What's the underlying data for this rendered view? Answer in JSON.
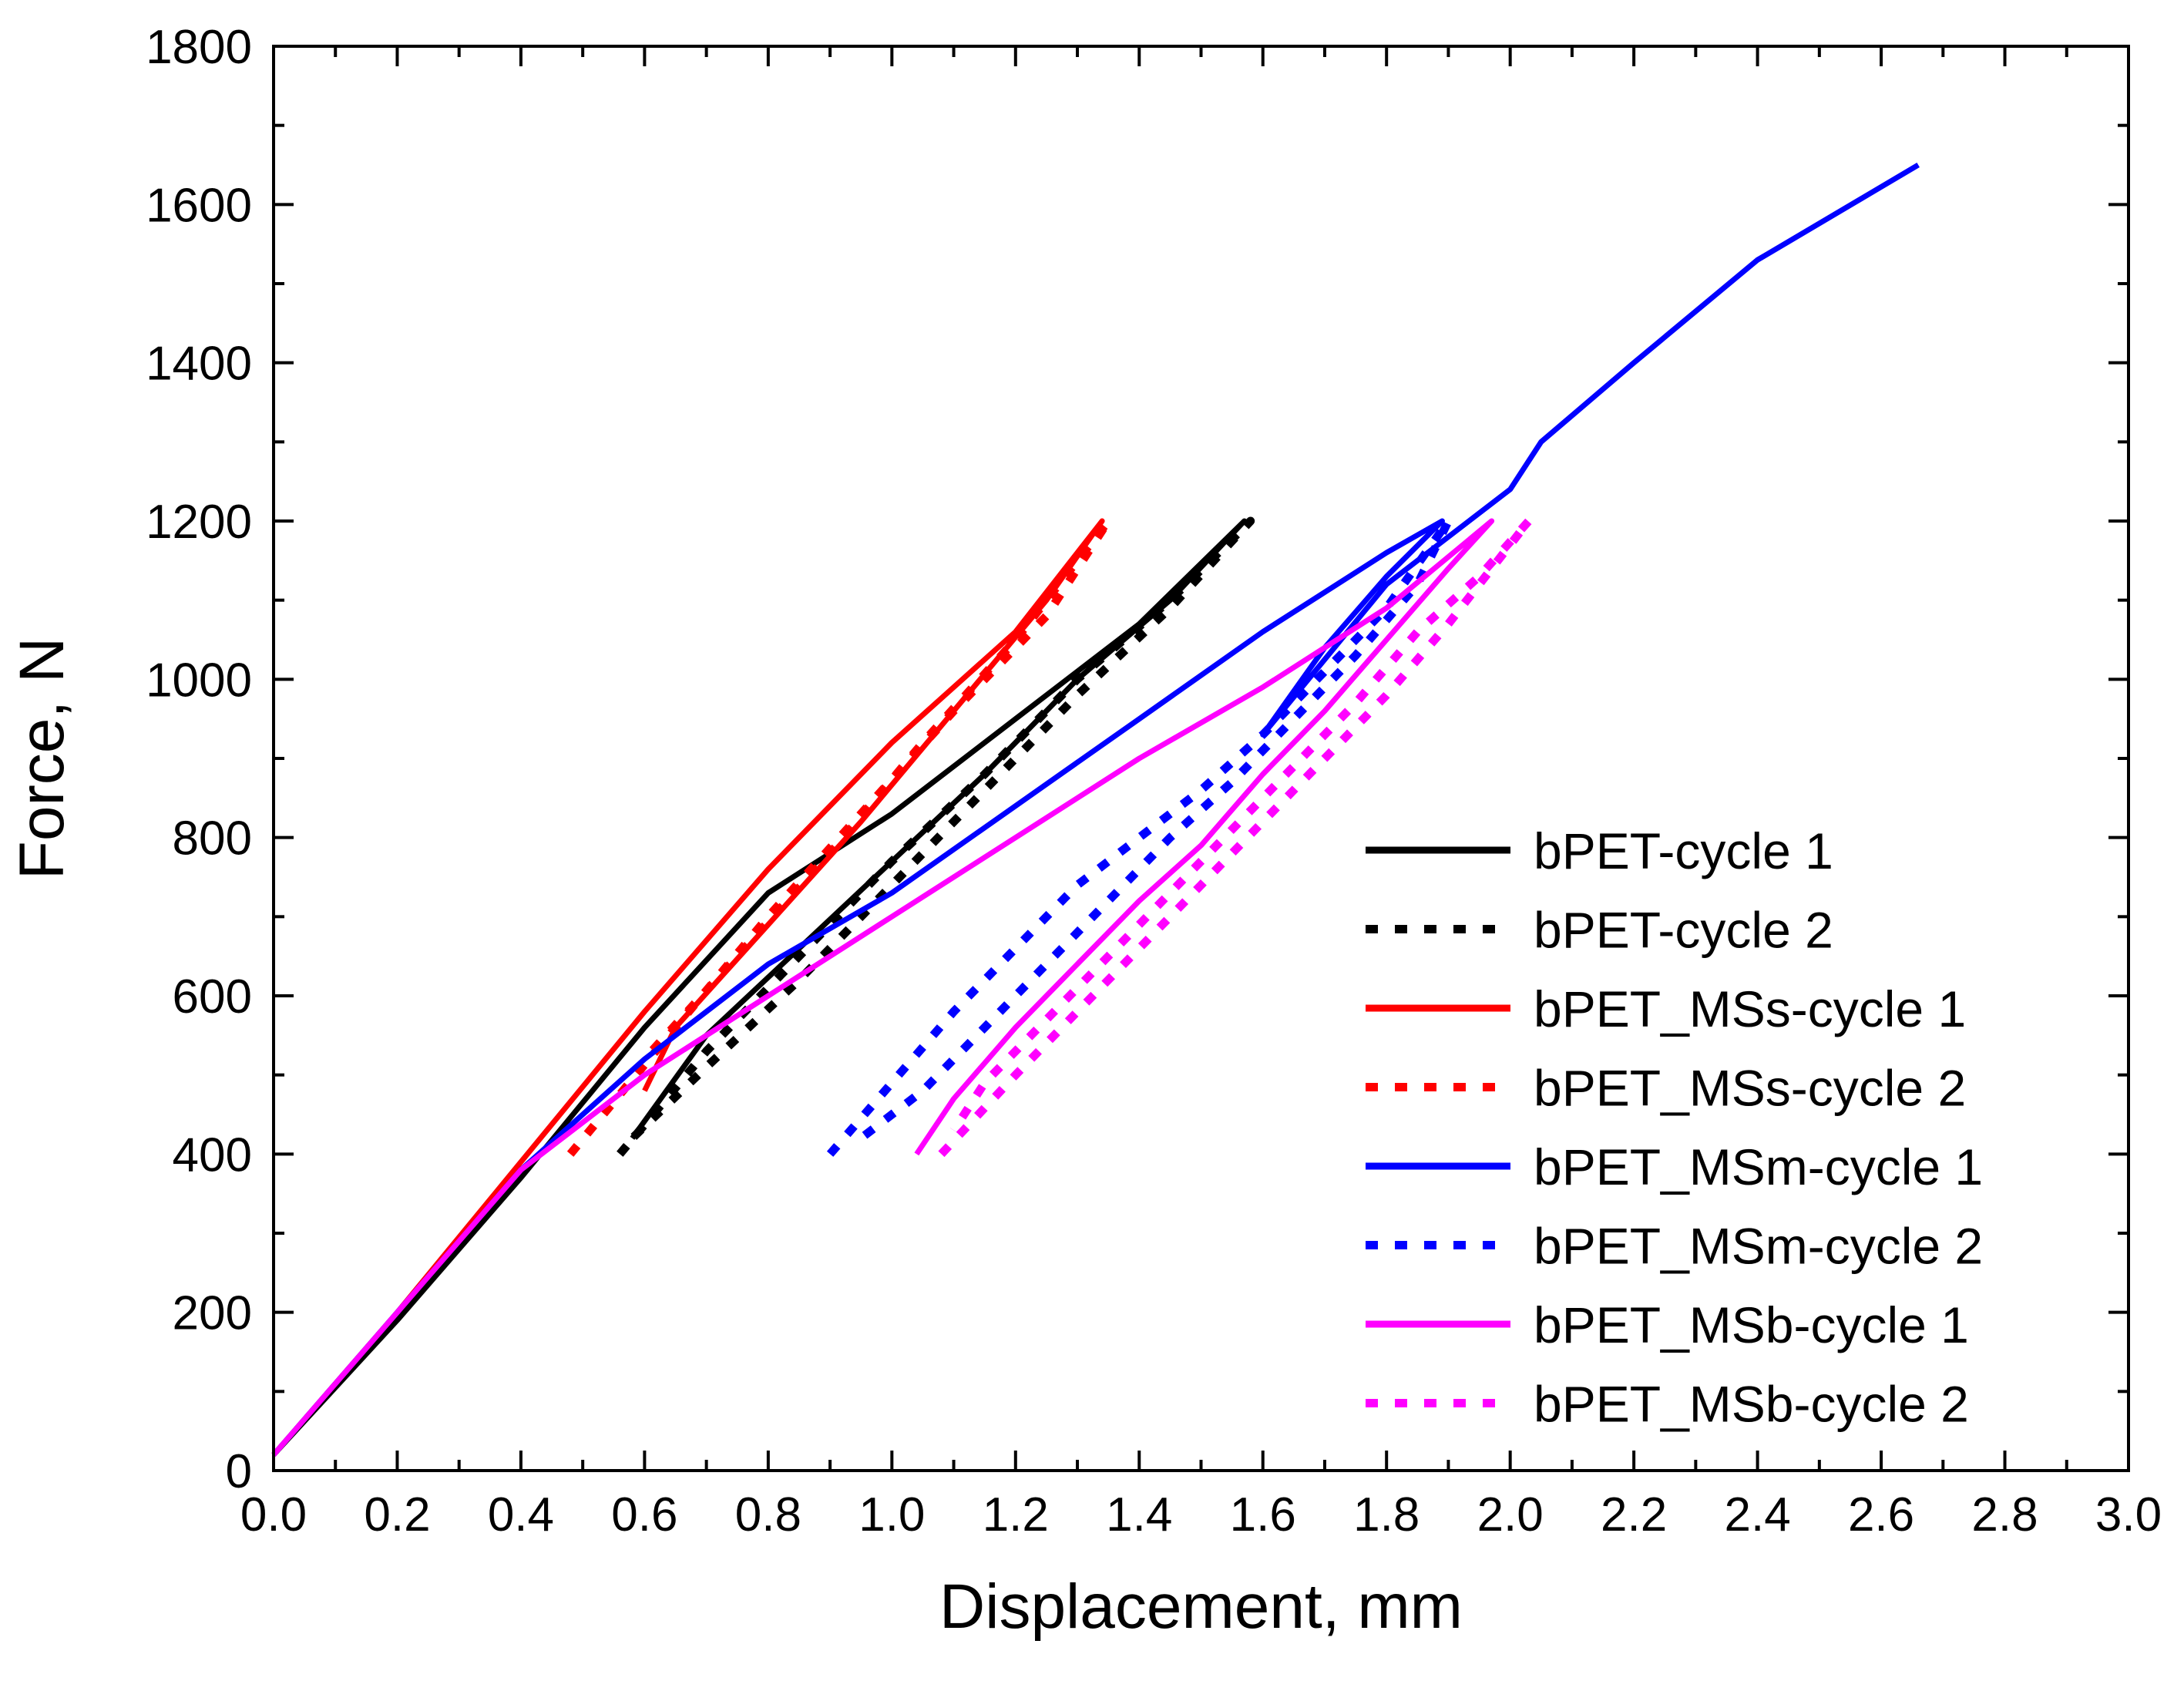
{
  "chart_data": {
    "type": "line",
    "title": "",
    "xlabel": "Displacement, mm",
    "ylabel": "Force, N",
    "xlim": [
      0.0,
      3.0
    ],
    "ylim": [
      0,
      1800
    ],
    "x_ticks": [
      "0.0",
      "0.2",
      "0.4",
      "0.6",
      "0.8",
      "1.0",
      "1.2",
      "1.4",
      "1.6",
      "1.8",
      "2.0",
      "2.2",
      "2.4",
      "2.6",
      "2.8",
      "3.0"
    ],
    "y_ticks": [
      "0",
      "200",
      "400",
      "600",
      "800",
      "1000",
      "1200",
      "1400",
      "1600",
      "1800"
    ],
    "legend_position": "bottom-right",
    "series": [
      {
        "name": "bPET-cycle 1",
        "color": "#000000",
        "style": "solid",
        "points": [
          [
            0.0,
            20
          ],
          [
            0.2,
            190
          ],
          [
            0.4,
            370
          ],
          [
            0.6,
            560
          ],
          [
            0.8,
            730
          ],
          [
            1.0,
            830
          ],
          [
            1.2,
            950
          ],
          [
            1.4,
            1070
          ],
          [
            1.57,
            1200
          ],
          [
            1.45,
            1100
          ],
          [
            1.3,
            1000
          ],
          [
            1.15,
            880
          ],
          [
            1.0,
            770
          ],
          [
            0.85,
            660
          ],
          [
            0.7,
            550
          ],
          [
            0.58,
            420
          ]
        ]
      },
      {
        "name": "bPET-cycle 2",
        "color": "#000000",
        "style": "dotted",
        "points": [
          [
            0.56,
            400
          ],
          [
            0.7,
            530
          ],
          [
            0.85,
            650
          ],
          [
            1.0,
            770
          ],
          [
            1.15,
            880
          ],
          [
            1.3,
            1000
          ],
          [
            1.45,
            1100
          ],
          [
            1.58,
            1200
          ],
          [
            1.45,
            1090
          ],
          [
            1.3,
            980
          ],
          [
            1.15,
            860
          ],
          [
            1.0,
            740
          ],
          [
            0.85,
            620
          ],
          [
            0.7,
            510
          ],
          [
            0.58,
            420
          ]
        ]
      },
      {
        "name": "bPET_MSs-cycle 1",
        "color": "#ff0000",
        "style": "solid",
        "points": [
          [
            0.0,
            20
          ],
          [
            0.2,
            200
          ],
          [
            0.4,
            390
          ],
          [
            0.6,
            580
          ],
          [
            0.8,
            760
          ],
          [
            1.0,
            920
          ],
          [
            1.2,
            1060
          ],
          [
            1.34,
            1200
          ],
          [
            1.25,
            1100
          ],
          [
            1.1,
            960
          ],
          [
            0.95,
            820
          ],
          [
            0.8,
            690
          ],
          [
            0.65,
            560
          ],
          [
            0.6,
            480
          ]
        ]
      },
      {
        "name": "bPET_MSs-cycle 2",
        "color": "#ff0000",
        "style": "dotted",
        "points": [
          [
            0.48,
            400
          ],
          [
            0.65,
            560
          ],
          [
            0.8,
            700
          ],
          [
            0.95,
            830
          ],
          [
            1.1,
            960
          ],
          [
            1.25,
            1080
          ],
          [
            1.35,
            1200
          ],
          [
            1.3,
            1150
          ],
          [
            1.2,
            1050
          ],
          [
            1.05,
            920
          ],
          [
            0.9,
            780
          ],
          [
            0.75,
            650
          ],
          [
            0.6,
            520
          ]
        ]
      },
      {
        "name": "bPET_MSm-cycle 1",
        "color": "#0000ff",
        "style": "solid",
        "points": [
          [
            0.0,
            20
          ],
          [
            0.2,
            200
          ],
          [
            0.4,
            380
          ],
          [
            0.6,
            520
          ],
          [
            0.8,
            640
          ],
          [
            1.0,
            730
          ],
          [
            1.2,
            840
          ],
          [
            1.4,
            950
          ],
          [
            1.6,
            1060
          ],
          [
            1.8,
            1160
          ],
          [
            1.89,
            1200
          ],
          [
            1.8,
            1130
          ],
          [
            1.7,
            1040
          ],
          [
            1.6,
            930
          ],
          [
            1.8,
            1120
          ],
          [
            2.0,
            1240
          ],
          [
            2.05,
            1300
          ],
          [
            2.2,
            1400
          ],
          [
            2.4,
            1530
          ],
          [
            2.66,
            1650
          ]
        ]
      },
      {
        "name": "bPET_MSm-cycle 2",
        "color": "#0000ff",
        "style": "dotted",
        "points": [
          [
            0.9,
            400
          ],
          [
            1.0,
            490
          ],
          [
            1.1,
            580
          ],
          [
            1.2,
            660
          ],
          [
            1.3,
            740
          ],
          [
            1.4,
            800
          ],
          [
            1.5,
            860
          ],
          [
            1.6,
            930
          ],
          [
            1.7,
            1010
          ],
          [
            1.8,
            1090
          ],
          [
            1.9,
            1200
          ],
          [
            1.85,
            1120
          ],
          [
            1.75,
            1030
          ],
          [
            1.65,
            950
          ],
          [
            1.55,
            870
          ],
          [
            1.45,
            800
          ],
          [
            1.35,
            720
          ],
          [
            1.25,
            640
          ],
          [
            1.15,
            560
          ],
          [
            1.05,
            480
          ],
          [
            0.95,
            420
          ]
        ]
      },
      {
        "name": "bPET_MSb-cycle 1",
        "color": "#ff00ff",
        "style": "solid",
        "points": [
          [
            0.0,
            20
          ],
          [
            0.2,
            200
          ],
          [
            0.4,
            380
          ],
          [
            0.6,
            500
          ],
          [
            0.8,
            600
          ],
          [
            1.0,
            700
          ],
          [
            1.2,
            800
          ],
          [
            1.4,
            900
          ],
          [
            1.6,
            990
          ],
          [
            1.8,
            1090
          ],
          [
            1.97,
            1200
          ],
          [
            1.9,
            1140
          ],
          [
            1.8,
            1050
          ],
          [
            1.7,
            960
          ],
          [
            1.6,
            880
          ],
          [
            1.5,
            790
          ],
          [
            1.4,
            720
          ],
          [
            1.3,
            640
          ],
          [
            1.2,
            560
          ],
          [
            1.1,
            470
          ],
          [
            1.04,
            400
          ]
        ]
      },
      {
        "name": "bPET_MSb-cycle 2",
        "color": "#ff00ff",
        "style": "dotted",
        "points": [
          [
            1.08,
            400
          ],
          [
            1.2,
            500
          ],
          [
            1.3,
            580
          ],
          [
            1.4,
            660
          ],
          [
            1.5,
            740
          ],
          [
            1.6,
            820
          ],
          [
            1.7,
            900
          ],
          [
            1.8,
            980
          ],
          [
            1.9,
            1070
          ],
          [
            2.03,
            1200
          ],
          [
            1.95,
            1130
          ],
          [
            1.85,
            1060
          ],
          [
            1.75,
            970
          ],
          [
            1.65,
            890
          ],
          [
            1.55,
            810
          ],
          [
            1.45,
            730
          ],
          [
            1.35,
            650
          ],
          [
            1.25,
            570
          ],
          [
            1.15,
            490
          ],
          [
            1.1,
            430
          ]
        ]
      }
    ]
  }
}
